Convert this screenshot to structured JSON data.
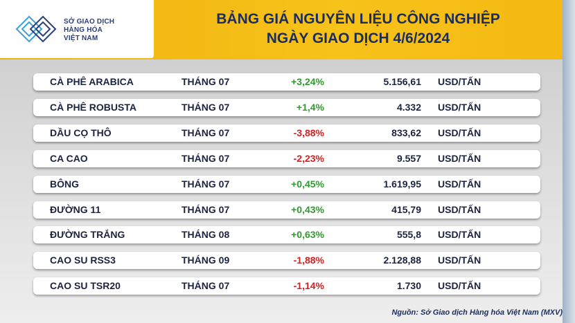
{
  "logo": {
    "lines": [
      "SỞ GIAO DỊCH",
      "HÀNG HÓA",
      "VIỆT NAM"
    ]
  },
  "header": {
    "title": [
      "BẢNG GIÁ NGUYÊN LIỆU CÔNG NGHIỆP",
      "NGÀY GIAO DỊCH 4/6/2024"
    ]
  },
  "table": {
    "rows": [
      [
        "CÀ PHÊ ARABICA",
        "THÁNG 07",
        "+3,24%",
        "5.156,61",
        "USD/TẤN"
      ],
      [
        "CÀ PHÊ ROBUSTA",
        "THÁNG 07",
        "+1,4%",
        "4.332",
        "USD/TẤN"
      ],
      [
        "DẦU CỌ THÔ",
        "THÁNG 07",
        "-3,88%",
        "833,62",
        "USD/TẤN"
      ],
      [
        "CA CAO",
        "THÁNG 07",
        "-2,23%",
        "9.557",
        "USD/TẤN"
      ],
      [
        "BÔNG",
        "THÁNG 07",
        "+0,45%",
        "1.619,95",
        "USD/TẤN"
      ],
      [
        "ĐƯỜNG 11",
        "THÁNG 07",
        "+0,43%",
        "415,79",
        "USD/TẤN"
      ],
      [
        "ĐƯỜNG TRẮNG",
        "THÁNG 08",
        "+0,63%",
        "555,8",
        "USD/TẤN"
      ],
      [
        "CAO SU RSS3",
        "THÁNG 09",
        "-1,88%",
        "2.128,88",
        "USD/TẤN"
      ],
      [
        "CAO SU TSR20",
        "THÁNG 07",
        "-1,14%",
        "1.730",
        "USD/TẤN"
      ]
    ]
  },
  "source": "Nguồn: Sở Giao dịch Hàng hóa Việt Nam (MXV)"
}
